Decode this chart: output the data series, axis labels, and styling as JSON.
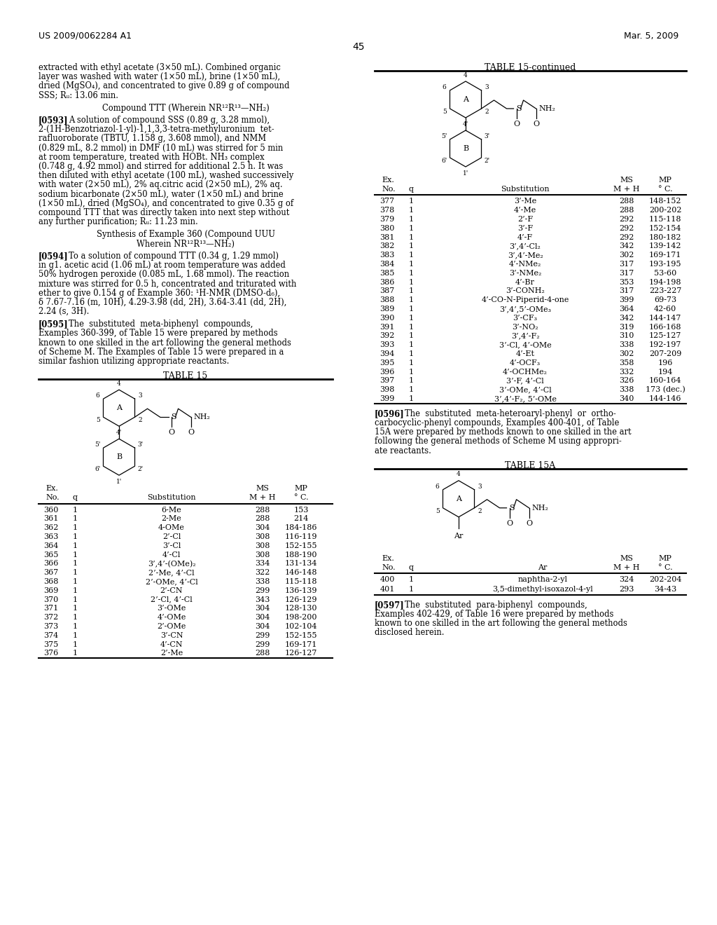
{
  "page_number": "45",
  "patent_number": "US 2009/0062284 A1",
  "patent_date": "Mar. 5, 2009",
  "background_color": "#ffffff",
  "left_column": {
    "para1": [
      "extracted with ethyl acetate (3×50 mL). Combined organic",
      "layer was washed with water (1×50 mL), brine (1×50 mL),",
      "dried (MgSO₄), and concentrated to give 0.89 g of compound",
      "SSS; Rᵤ: 13.06 min."
    ],
    "center1": "Compound TTT (Wherein NR¹²R¹³—NH₂)",
    "para2_tag": "[0593]",
    "para2": [
      "A solution of compound SSS (0.89 g, 3.28 mmol),",
      "2-(1H-Benzotriazol-1-yl)-1,1,3,3-tetra-methyluronium  tet-",
      "rafluoroborate (TBTU, 1.158 g, 3.608 mmol), and NMM",
      "(0.829 mL, 8.2 mmol) in DMF (10 mL) was stirred for 5 min",
      "at room temperature, treated with HOBt. NH₃ complex",
      "(0.748 g, 4.92 mmol) and stirred for additional 2.5 h. It was",
      "then diluted with ethyl acetate (100 mL), washed successively",
      "with water (2×50 mL), 2% aq.citric acid (2×50 mL), 2% aq.",
      "sodium bicarbonate (2×50 mL), water (1×50 mL) and brine",
      "(1×50 mL), dried (MgSO₄), and concentrated to give 0.35 g of",
      "compound TTT that was directly taken into next step without",
      "any further purification; Rᵤ: 11.23 min."
    ],
    "center2a": "Synthesis of Example 360 (Compound UUU",
    "center2b": "Wherein NR¹²R¹³—NH₂)",
    "para3_tag": "[0594]",
    "para3": [
      "To a solution of compound TTT (0.34 g, 1.29 mmol)",
      "in g1. acetic acid (1.06 mL) at room temperature was added",
      "50% hydrogen peroxide (0.085 mL, 1.68 mmol). The reaction",
      "mixture was stirred for 0.5 h, concentrated and triturated with",
      "ether to give 0.154 g of Example 360: ¹H-NMR (DMSO-d₆),",
      "δ 7.67-7.16 (m, 10H), 4.29-3.98 (dd, 2H), 3.64-3.41 (dd, 2H),",
      "2.24 (s, 3H)."
    ],
    "para4_tag": "[0595]",
    "para4": [
      "The  substituted  meta-biphenyl  compounds,",
      "Examples 360-399, of Table 15 were prepared by methods",
      "known to one skilled in the art following the general methods",
      "of Scheme M. The Examples of Table 15 were prepared in a",
      "similar fashion utilizing appropriate reactants."
    ],
    "table15_title": "TABLE 15",
    "table15_data": [
      [
        "360",
        "1",
        "6-Me",
        "288",
        "153"
      ],
      [
        "361",
        "1",
        "2-Me",
        "288",
        "214"
      ],
      [
        "362",
        "1",
        "4-OMe",
        "304",
        "184-186"
      ],
      [
        "363",
        "1",
        "2’-Cl",
        "308",
        "116-119"
      ],
      [
        "364",
        "1",
        "3’-Cl",
        "308",
        "152-155"
      ],
      [
        "365",
        "1",
        "4’-Cl",
        "308",
        "188-190"
      ],
      [
        "366",
        "1",
        "3’,4’-(OMe)₂",
        "334",
        "131-134"
      ],
      [
        "367",
        "1",
        "2’-Me, 4’-Cl",
        "322",
        "146-148"
      ],
      [
        "368",
        "1",
        "2’-OMe, 4’-Cl",
        "338",
        "115-118"
      ],
      [
        "369",
        "1",
        "2’-CN",
        "299",
        "136-139"
      ],
      [
        "370",
        "1",
        "2’-Cl, 4’-Cl",
        "343",
        "126-129"
      ],
      [
        "371",
        "1",
        "3’-OMe",
        "304",
        "128-130"
      ],
      [
        "372",
        "1",
        "4’-OMe",
        "304",
        "198-200"
      ],
      [
        "373",
        "1",
        "2’-OMe",
        "304",
        "102-104"
      ],
      [
        "374",
        "1",
        "3’-CN",
        "299",
        "152-155"
      ],
      [
        "375",
        "1",
        "4’-CN",
        "299",
        "169-171"
      ],
      [
        "376",
        "1",
        "2’-Me",
        "288",
        "126-127"
      ]
    ]
  },
  "right_column": {
    "table15cont_title": "TABLE 15-continued",
    "table15cont_data": [
      [
        "377",
        "1",
        "3’-Me",
        "288",
        "148-152"
      ],
      [
        "378",
        "1",
        "4’-Me",
        "288",
        "200-202"
      ],
      [
        "379",
        "1",
        "2’-F",
        "292",
        "115-118"
      ],
      [
        "380",
        "1",
        "3’-F",
        "292",
        "152-154"
      ],
      [
        "381",
        "1",
        "4’-F",
        "292",
        "180-182"
      ],
      [
        "382",
        "1",
        "3’,4’-Cl₂",
        "342",
        "139-142"
      ],
      [
        "383",
        "1",
        "3’,4’-Me₂",
        "302",
        "169-171"
      ],
      [
        "384",
        "1",
        "4’-NMe₂",
        "317",
        "193-195"
      ],
      [
        "385",
        "1",
        "3’-NMe₂",
        "317",
        "53-60"
      ],
      [
        "386",
        "1",
        "4’-Br",
        "353",
        "194-198"
      ],
      [
        "387",
        "1",
        "3’-CONH₂",
        "317",
        "223-227"
      ],
      [
        "388",
        "1",
        "4’-CO-N-Piperid-4-one",
        "399",
        "69-73"
      ],
      [
        "389",
        "1",
        "3’,4’,5’-OMe₃",
        "364",
        "42-60"
      ],
      [
        "390",
        "1",
        "3’-CF₃",
        "342",
        "144-147"
      ],
      [
        "391",
        "1",
        "3’-NO₂",
        "319",
        "166-168"
      ],
      [
        "392",
        "1",
        "3’,4’-F₂",
        "310",
        "125-127"
      ],
      [
        "393",
        "1",
        "3’-Cl, 4’-OMe",
        "338",
        "192-197"
      ],
      [
        "394",
        "1",
        "4’-Et",
        "302",
        "207-209"
      ],
      [
        "395",
        "1",
        "4’-OCF₃",
        "358",
        "196"
      ],
      [
        "396",
        "1",
        "4’-OCHMe₂",
        "332",
        "194"
      ],
      [
        "397",
        "1",
        "3’-F, 4’-Cl",
        "326",
        "160-164"
      ],
      [
        "398",
        "1",
        "3’-OMe, 4’-Cl",
        "338",
        "173 (dec.)"
      ],
      [
        "399",
        "1",
        "3’,4’-F₂, 5’-OMe",
        "340",
        "144-146"
      ]
    ],
    "para5_tag": "[0596]",
    "para5": [
      "The  substituted  meta-heteroaryl-phenyl  or  ortho-",
      "carbocyclic-phenyl compounds, Examples 400-401, of Table",
      "15A were prepared by methods known to one skilled in the art",
      "following the general methods of Scheme M using appropri-",
      "ate reactants."
    ],
    "table15a_title": "TABLE 15A",
    "table15a_data": [
      [
        "400",
        "1",
        "naphtha-2-yl",
        "324",
        "202-204"
      ],
      [
        "401",
        "1",
        "3,5-dimethyl-isoxazol-4-yl",
        "293",
        "34-43"
      ]
    ],
    "para6_tag": "[0597]",
    "para6": [
      "The  substituted  para-biphenyl  compounds,",
      "Examples 402-429, of Table 16 were prepared by methods",
      "known to one skilled in the art following the general methods",
      "disclosed herein."
    ]
  }
}
